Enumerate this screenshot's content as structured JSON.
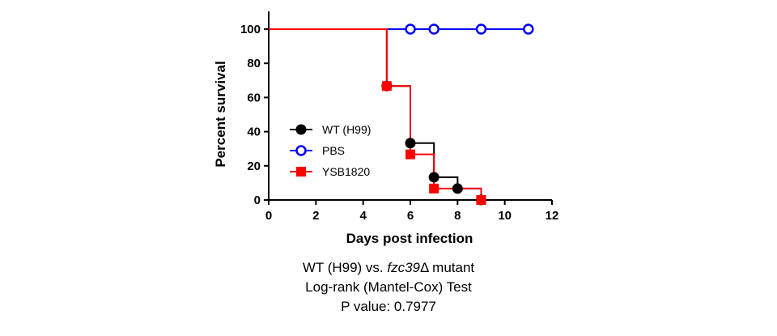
{
  "chart_data": {
    "type": "line",
    "subtype": "survival-step",
    "xlabel": "Days post infection",
    "ylabel": "Percent survival",
    "xlim": [
      0,
      12
    ],
    "ylim": [
      0,
      100
    ],
    "xticks": [
      0,
      2,
      4,
      6,
      8,
      10,
      12
    ],
    "yticks": [
      0,
      20,
      40,
      60,
      80,
      100
    ],
    "grid": false,
    "legend_position": "left-middle",
    "series": [
      {
        "name": "WT (H99)",
        "color": "#000000",
        "marker": "filled-circle",
        "steps": [
          [
            0,
            100
          ],
          [
            5,
            66.7
          ],
          [
            6,
            33.3
          ],
          [
            7,
            13.3
          ],
          [
            8,
            6.7
          ],
          [
            9,
            0
          ],
          [
            10,
            0
          ]
        ],
        "markers": [
          [
            5,
            66.7
          ],
          [
            6,
            33.3
          ],
          [
            7,
            13.3
          ],
          [
            8,
            6.7
          ],
          [
            9,
            0
          ]
        ]
      },
      {
        "name": "PBS",
        "color": "#0000ff",
        "marker": "open-circle",
        "steps": [
          [
            0,
            100
          ],
          [
            11,
            100
          ]
        ],
        "markers": [
          [
            6,
            100
          ],
          [
            7,
            100
          ],
          [
            9,
            100
          ],
          [
            11,
            100
          ]
        ]
      },
      {
        "name": "YSB1820",
        "color": "#ff0000",
        "marker": "filled-square",
        "steps": [
          [
            0,
            100
          ],
          [
            5,
            66.7
          ],
          [
            6,
            26.7
          ],
          [
            7,
            6.7
          ],
          [
            9,
            0
          ]
        ],
        "markers": [
          [
            5,
            66.7
          ],
          [
            6,
            26.7
          ],
          [
            7,
            6.7
          ],
          [
            9,
            0
          ]
        ]
      }
    ]
  },
  "caption": {
    "line1_prefix": "WT (H99) vs. ",
    "line1_italic": "fzc39",
    "line1_suffix": "Δ mutant",
    "line2": "Log-rank (Mantel-Cox) Test",
    "line3": "P value: 0.7977"
  }
}
